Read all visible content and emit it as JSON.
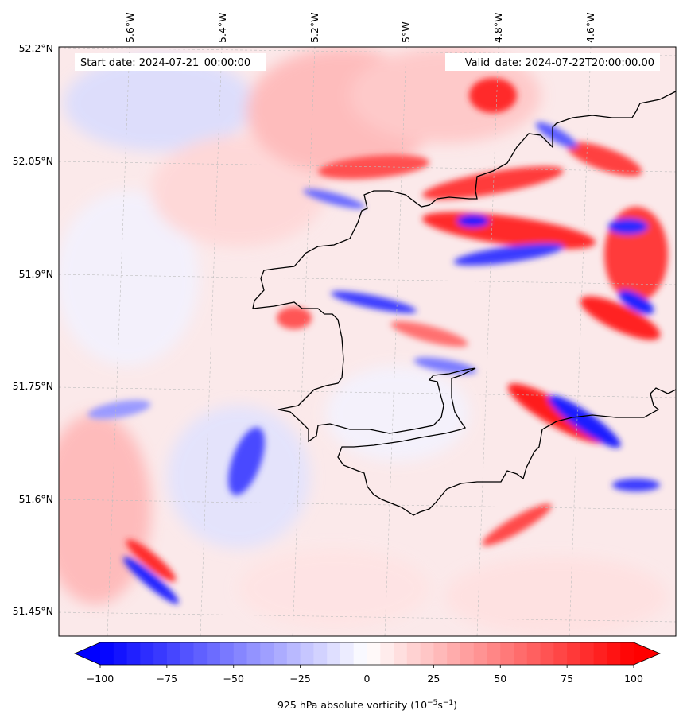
{
  "header": {
    "start_label": "Start date: 2024-07-21_00:00:00",
    "valid_label": "Valid_date: 2024-07-22T20:00:00.00"
  },
  "axes": {
    "lat_ticks": [
      "52.2°N",
      "52.05°N",
      "51.9°N",
      "51.75°N",
      "51.6°N",
      "51.45°N"
    ],
    "lon_ticks": [
      "5.6°W",
      "5.4°W",
      "5.2°W",
      "5°W",
      "4.8°W",
      "4.6°W"
    ]
  },
  "colorbar": {
    "ticks": [
      "−100",
      "−75",
      "−50",
      "−25",
      "0",
      "25",
      "50",
      "75",
      "100"
    ],
    "label": "925 hPa absolute vorticity (10",
    "label_exp1": "−5",
    "label_mid": "s",
    "label_exp2": "−1",
    "label_end": ")",
    "min": -100,
    "max": 100,
    "levels": 40,
    "colors": {
      "negative": "#0000ff",
      "zero": "#ffffff",
      "positive": "#ff0000"
    }
  },
  "map": {
    "field": "925 hPa absolute vorticity",
    "coastline_color": "#000000",
    "gridline_style": "dashed light grey"
  }
}
